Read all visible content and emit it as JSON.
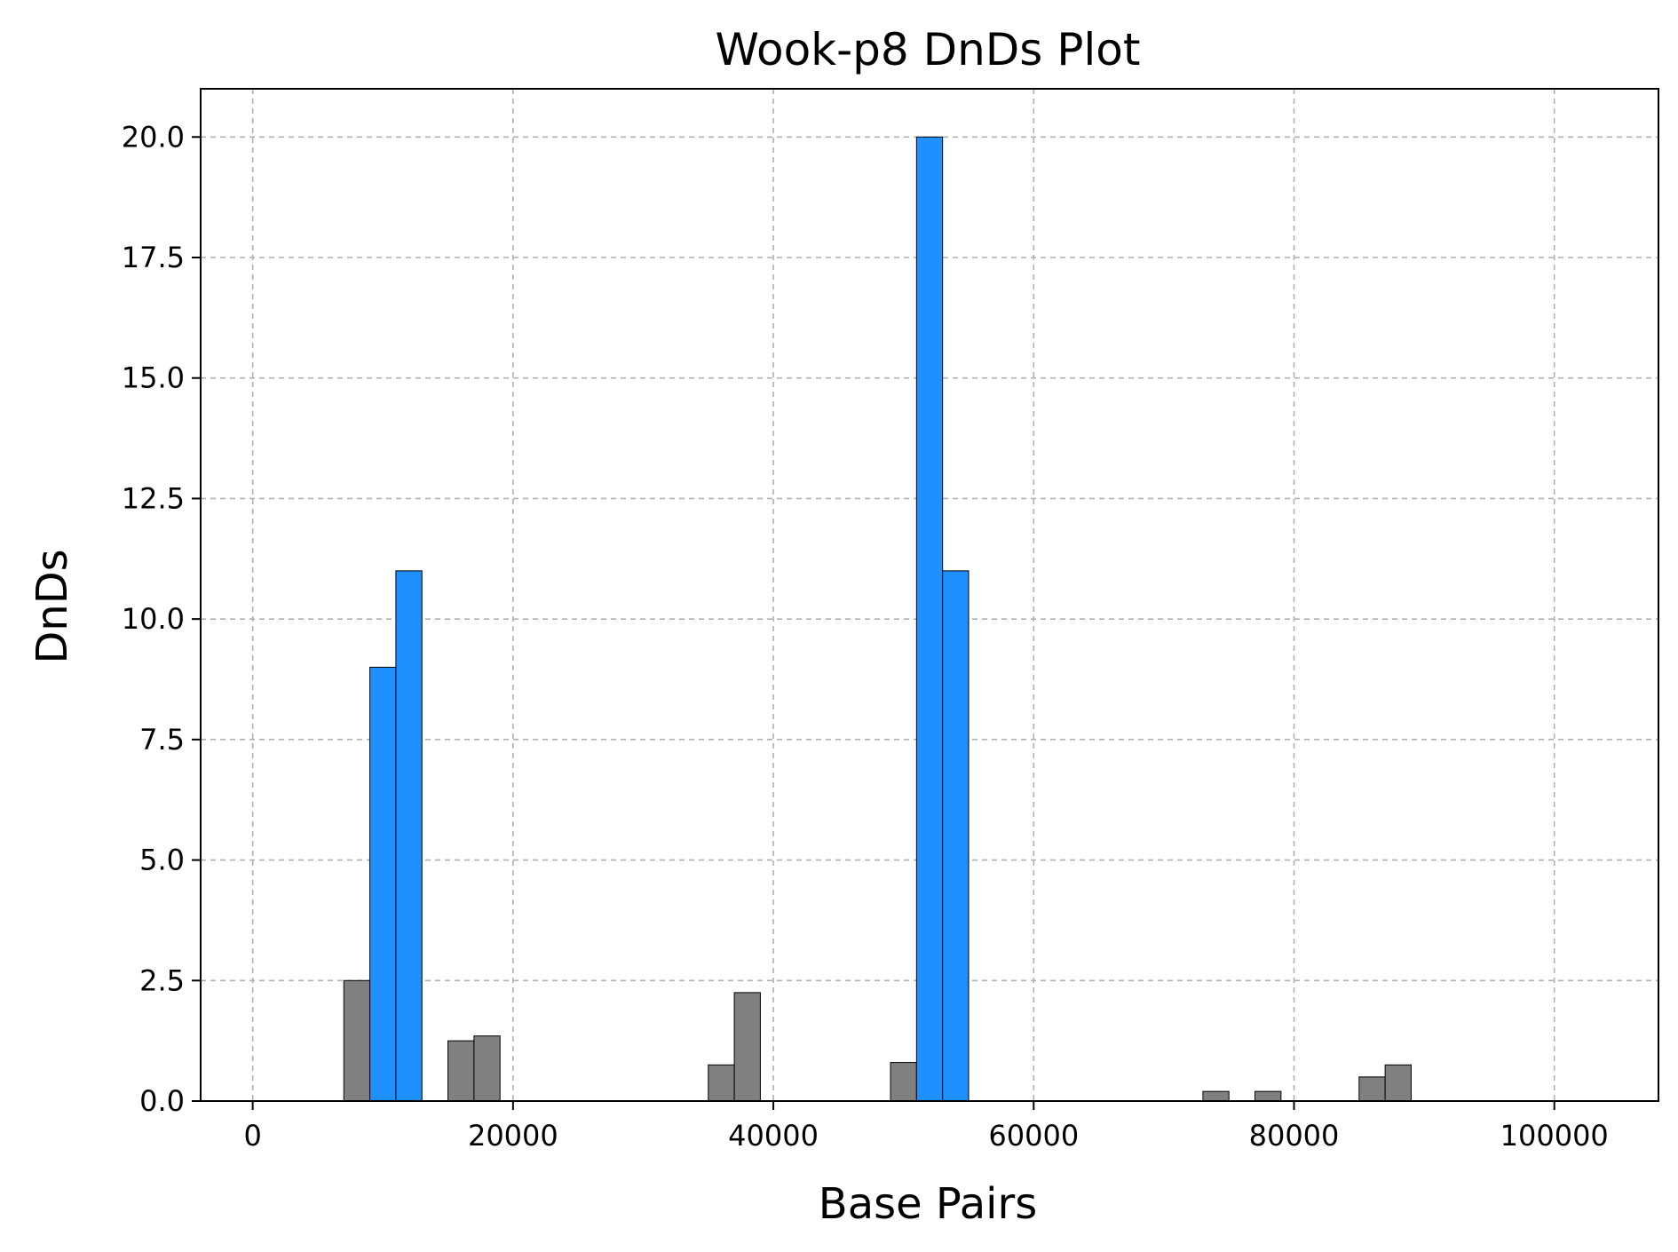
{
  "chart_data": {
    "type": "bar",
    "title": "Wook-p8 DnDs Plot",
    "xlabel": "Base Pairs",
    "ylabel": "DnDs",
    "xlim": [
      -4000,
      108000
    ],
    "ylim": [
      0,
      21
    ],
    "x_ticks": [
      0,
      20000,
      40000,
      60000,
      80000,
      100000
    ],
    "x_tick_labels": [
      "0",
      "20000",
      "40000",
      "60000",
      "80000",
      "100000"
    ],
    "y_ticks": [
      0,
      2.5,
      5,
      7.5,
      10,
      12.5,
      15,
      17.5,
      20
    ],
    "y_tick_labels": [
      "0.0",
      "2.5",
      "5.0",
      "7.5",
      "10.0",
      "12.5",
      "15.0",
      "17.5",
      "20.0"
    ],
    "grid": true,
    "bar_width": 2000,
    "highlight_threshold": 5,
    "colors": {
      "normal": "#808080",
      "highlight": "#1e90ff"
    },
    "bars": [
      {
        "x": 8000,
        "value": 2.5
      },
      {
        "x": 10000,
        "value": 9.0
      },
      {
        "x": 12000,
        "value": 11.0
      },
      {
        "x": 16000,
        "value": 1.25
      },
      {
        "x": 18000,
        "value": 1.35
      },
      {
        "x": 36000,
        "value": 0.75
      },
      {
        "x": 38000,
        "value": 2.25
      },
      {
        "x": 50000,
        "value": 0.8
      },
      {
        "x": 52000,
        "value": 20.0
      },
      {
        "x": 54000,
        "value": 11.0
      },
      {
        "x": 74000,
        "value": 0.2
      },
      {
        "x": 78000,
        "value": 0.2
      },
      {
        "x": 86000,
        "value": 0.5
      },
      {
        "x": 88000,
        "value": 0.75
      }
    ]
  }
}
